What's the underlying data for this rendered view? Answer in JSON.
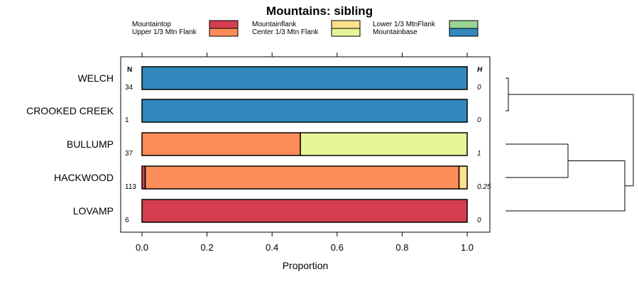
{
  "chart_data": {
    "type": "bar",
    "orientation": "horizontal",
    "stacked": true,
    "title": "Mountains: sibling",
    "xlabel": "Proportion",
    "ylabel": "",
    "xlim": [
      0,
      1
    ],
    "x_ticks": [
      "0.0",
      "0.2",
      "0.4",
      "0.6",
      "0.8",
      "1.0"
    ],
    "x_tick_values": [
      0,
      0.2,
      0.4,
      0.6,
      0.8,
      1.0
    ],
    "n_header": "N",
    "h_header": "H",
    "legend_position": "top",
    "categories": [
      "WELCH",
      "CROOKED CREEK",
      "BULLUMP",
      "HACKWOOD",
      "LOVAMP"
    ],
    "n_values": [
      "34",
      "1",
      "37",
      "113",
      "6"
    ],
    "h_values": [
      "0",
      "0",
      "1",
      "0.25",
      "0"
    ],
    "series": [
      {
        "name": "Mountaintop",
        "color": "#d53e4f",
        "values": [
          0,
          0,
          0,
          0.01,
          1.0
        ]
      },
      {
        "name": "Upper 1/3 Mtn Flank",
        "color": "#fc8d59",
        "values": [
          0,
          0,
          0.487,
          0.965,
          0
        ]
      },
      {
        "name": "Mountainflank",
        "color": "#fee08b",
        "values": [
          0,
          0,
          0,
          0.025,
          0
        ]
      },
      {
        "name": "Center 1/3 Mtn Flank",
        "color": "#e6f598",
        "values": [
          0,
          0,
          0.513,
          0,
          0
        ]
      },
      {
        "name": "Lower 1/3 MtnFlank",
        "color": "#99d594",
        "values": [
          0,
          0,
          0,
          0,
          0
        ]
      },
      {
        "name": "Mountainbase",
        "color": "#3288bd",
        "values": [
          1.0,
          1.0,
          0,
          0,
          0
        ]
      }
    ],
    "dendrogram": {
      "present": true,
      "merges": [
        [
          "WELCH",
          "CROOKED CREEK"
        ],
        [
          "BULLUMP",
          "HACKWOOD"
        ],
        [
          [
            "BULLUMP",
            "HACKWOOD"
          ],
          "LOVAMP"
        ],
        [
          [
            "WELCH",
            "CROOKED CREEK"
          ],
          [
            [
              "BULLUMP",
              "HACKWOOD"
            ],
            "LOVAMP"
          ]
        ]
      ]
    }
  }
}
